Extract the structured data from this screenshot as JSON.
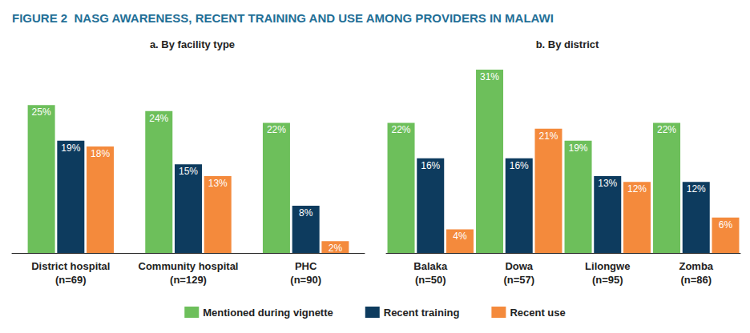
{
  "title": "FIGURE 2  NASG AWARENESS, RECENT TRAINING AND USE AMONG PROVIDERS IN MALAWI",
  "legend": "bottom",
  "chart_data": [
    {
      "type": "bar",
      "title": "a. By facility type",
      "categories": [
        "District hospital\n(n=69)",
        "Community hospital\n(n=129)",
        "PHC\n(n=90)"
      ],
      "ylim": [
        0,
        31
      ],
      "tick_labels": "x",
      "grid": false,
      "data_labels": true,
      "series": [
        {
          "name": "Mentioned during vignette",
          "color": "#6dbf5b",
          "values": [
            25,
            24,
            22
          ],
          "value_labels": [
            "25%",
            "24%",
            "22%"
          ]
        },
        {
          "name": "Recent training",
          "color": "#0d3b5e",
          "values": [
            19,
            15,
            8
          ],
          "value_labels": [
            "19%",
            "15%",
            "8%"
          ]
        },
        {
          "name": "Recent use",
          "color": "#f48a3c",
          "values": [
            18,
            13,
            2
          ],
          "value_labels": [
            "18%",
            "13%",
            "2%"
          ]
        }
      ]
    },
    {
      "type": "bar",
      "title": "b. By district",
      "categories": [
        "Balaka\n(n=50)",
        "Dowa\n(n=57)",
        "Lilongwe\n(n=95)",
        "Zomba\n(n=86)"
      ],
      "ylim": [
        0,
        31
      ],
      "tick_labels": "x",
      "grid": false,
      "data_labels": true,
      "series": [
        {
          "name": "Mentioned during vignette",
          "color": "#6dbf5b",
          "values": [
            22,
            31,
            19,
            22
          ],
          "value_labels": [
            "22%",
            "31%",
            "19%",
            "22%"
          ]
        },
        {
          "name": "Recent training",
          "color": "#0d3b5e",
          "values": [
            16,
            16,
            13,
            12
          ],
          "value_labels": [
            "16%",
            "16%",
            "13%",
            "12%"
          ]
        },
        {
          "name": "Recent use",
          "color": "#f48a3c",
          "values": [
            4,
            21,
            12,
            6
          ],
          "value_labels": [
            "4%",
            "21%",
            "12%",
            "6%"
          ]
        }
      ]
    }
  ]
}
